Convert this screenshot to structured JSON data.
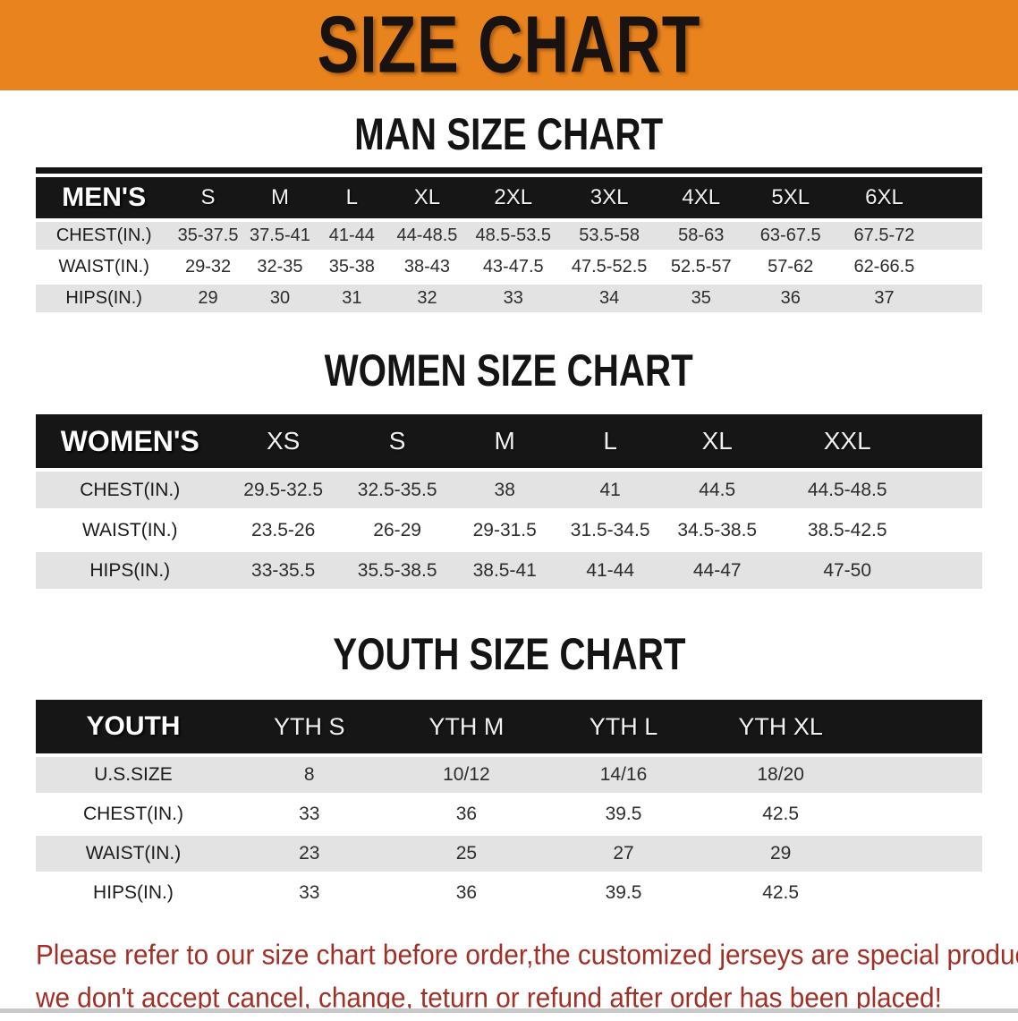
{
  "banner": {
    "title": "SIZE CHART"
  },
  "colors": {
    "banner_bg": "#E8831D",
    "table_header_bg": "#161616",
    "row_gray": "#E3E3E3",
    "disclaimer_red": "#A22F26"
  },
  "sections": [
    {
      "title": "MAN SIZE CHART",
      "group_label": "MEN'S",
      "sizes": [
        "S",
        "M",
        "L",
        "XL",
        "2XL",
        "3XL",
        "4XL",
        "5XL",
        "6XL"
      ],
      "rows": [
        {
          "label": "CHEST(IN.)",
          "values": [
            "35-37.5",
            "37.5-41",
            "41-44",
            "44-48.5",
            "48.5-53.5",
            "53.5-58",
            "58-63",
            "63-67.5",
            "67.5-72"
          ]
        },
        {
          "label": "WAIST(IN.)",
          "values": [
            "29-32",
            "32-35",
            "35-38",
            "38-43",
            "43-47.5",
            "47.5-52.5",
            "52.5-57",
            "57-62",
            "62-66.5"
          ]
        },
        {
          "label": "HIPS(IN.)",
          "values": [
            "29",
            "30",
            "31",
            "32",
            "33",
            "34",
            "35",
            "36",
            "37"
          ]
        }
      ]
    },
    {
      "title": "WOMEN SIZE CHART",
      "group_label": "WOMEN'S",
      "sizes": [
        "XS",
        "S",
        "M",
        "L",
        "XL",
        "XXL"
      ],
      "rows": [
        {
          "label": "CHEST(IN.)",
          "values": [
            "29.5-32.5",
            "32.5-35.5",
            "38",
            "41",
            "44.5",
            "44.5-48.5"
          ]
        },
        {
          "label": "WAIST(IN.)",
          "values": [
            "23.5-26",
            "26-29",
            "29-31.5",
            "31.5-34.5",
            "34.5-38.5",
            "38.5-42.5"
          ]
        },
        {
          "label": "HIPS(IN.)",
          "values": [
            "33-35.5",
            "35.5-38.5",
            "38.5-41",
            "41-44",
            "44-47",
            "47-50"
          ]
        }
      ]
    },
    {
      "title": "YOUTH SIZE CHART",
      "group_label": "YOUTH",
      "sizes": [
        "YTH S",
        "YTH M",
        "YTH L",
        "YTH XL"
      ],
      "rows": [
        {
          "label": "U.S.SIZE",
          "values": [
            "8",
            "10/12",
            "14/16",
            "18/20"
          ]
        },
        {
          "label": "CHEST(IN.)",
          "values": [
            "33",
            "36",
            "39.5",
            "42.5"
          ]
        },
        {
          "label": "WAIST(IN.)",
          "values": [
            "23",
            "25",
            "27",
            "29"
          ]
        },
        {
          "label": "HIPS(IN.)",
          "values": [
            "33",
            "36",
            "39.5",
            "42.5"
          ]
        }
      ]
    }
  ],
  "footer": {
    "line1": "Please refer to our size chart before order,the customized jerseys are special products,",
    "line2": "we don't accept cancel, change, teturn or refund after order has been placed!"
  }
}
